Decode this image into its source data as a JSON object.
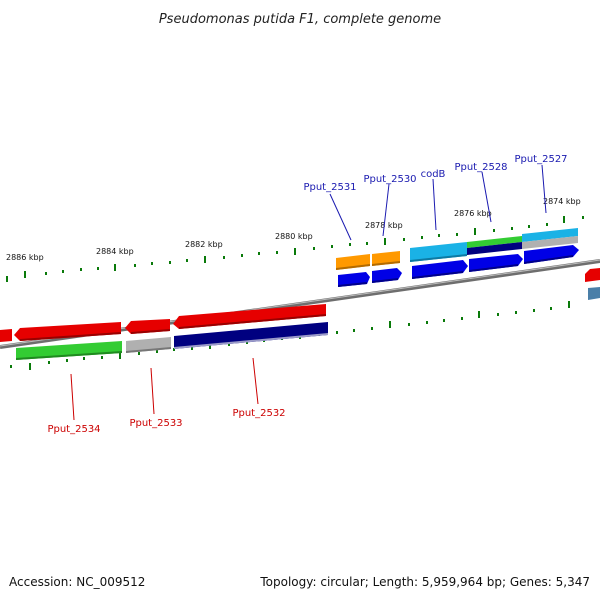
{
  "title": "Pseudomonas putida F1, complete genome",
  "footer": {
    "accession": "Accession: NC_009512",
    "summary": "Topology: circular; Length: 5,959,964 bp; Genes: 5,347"
  },
  "scale_labels": [
    "2886 kbp",
    "2884 kbp",
    "2882 kbp",
    "2880 kbp",
    "2878 kbp",
    "2876 kbp",
    "2874 kbp"
  ],
  "genes_top": [
    "Pput_2531",
    "Pput_2530",
    "codB",
    "Pput_2528",
    "Pput_2527"
  ],
  "genes_bottom": [
    "Pput_2534",
    "Pput_2533",
    "Pput_2532"
  ],
  "colors": {
    "red": "#e60000",
    "green": "#33cc33",
    "gray": "#b0b0b0",
    "navy": "#000080",
    "blue": "#0000e6",
    "orange": "#ff9900",
    "cyan": "#1ab2e6",
    "steel": "#4a7fa8",
    "tick": "#0a7a0a",
    "label_top": "#1a1ab0",
    "label_bottom": "#cc0000"
  }
}
